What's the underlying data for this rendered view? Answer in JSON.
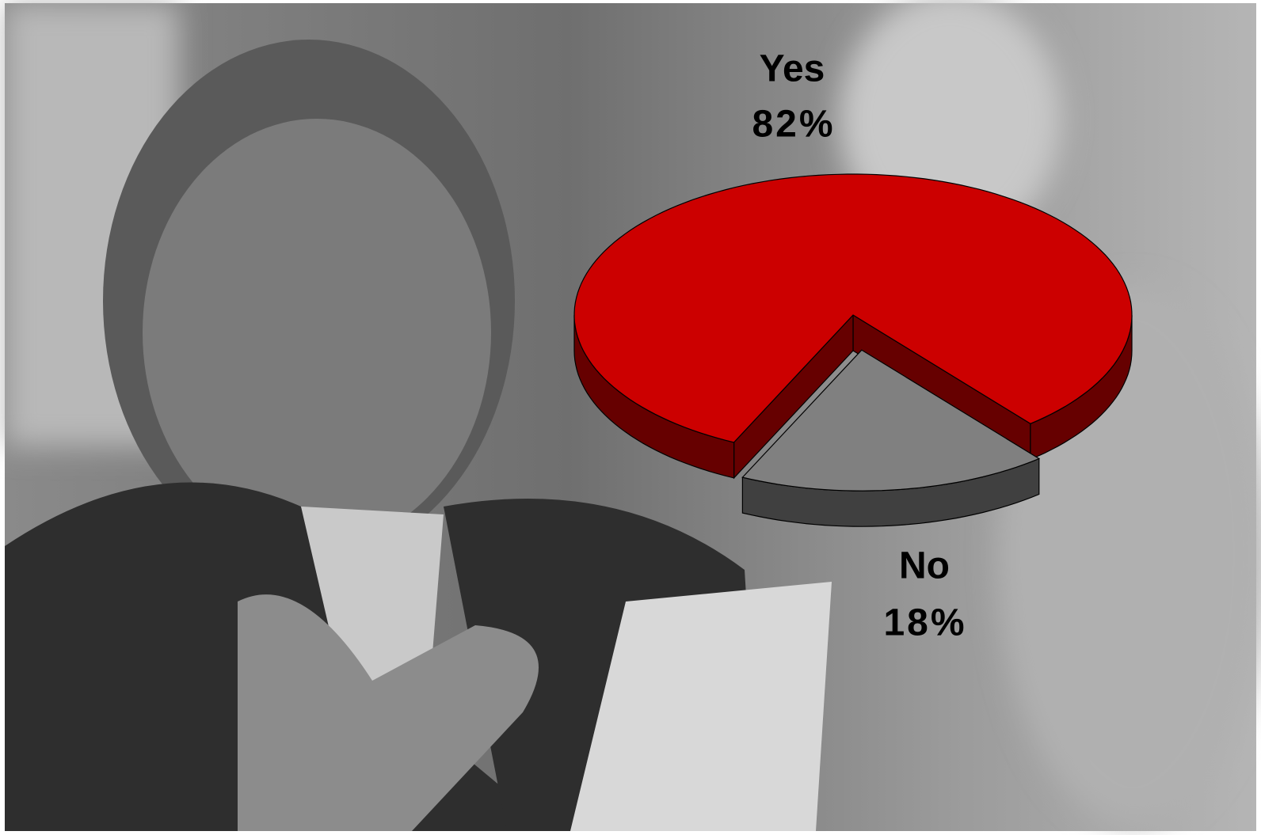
{
  "chart_data": {
    "type": "pie",
    "categories": [
      "Yes",
      "No"
    ],
    "values": [
      82,
      18
    ],
    "value_labels": [
      "82%",
      "18%"
    ],
    "colors": [
      "#cc0000",
      "#808080"
    ]
  }
}
